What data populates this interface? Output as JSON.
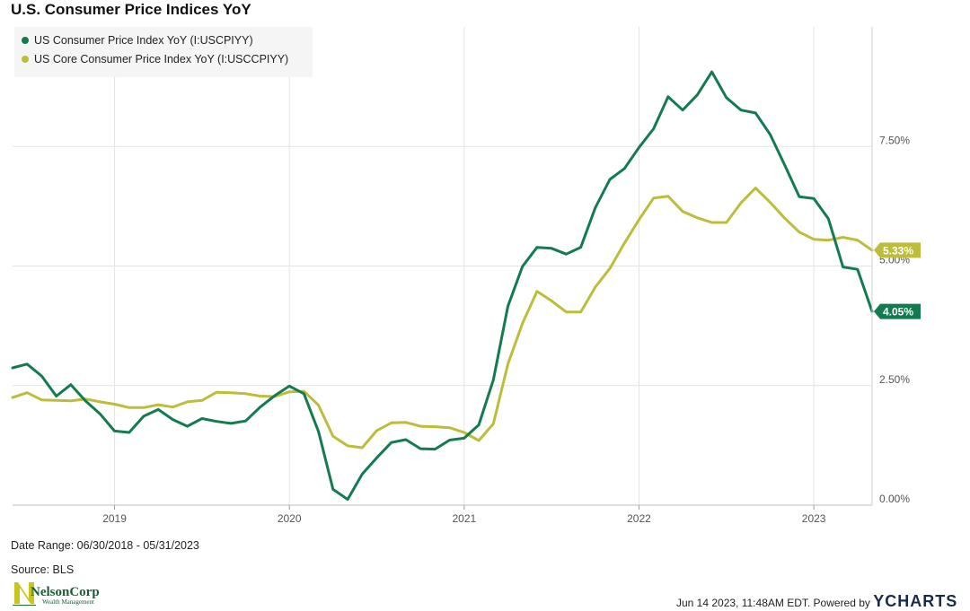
{
  "page": {
    "title": "U.S. Consumer Price Indices YoY",
    "date_range": "Date Range: 06/30/2018 - 05/31/2023",
    "source": "Source: BLS",
    "timestamp": "Jun 14 2023, 11:48AM EDT.",
    "powered_by": "Powered by",
    "brand": "YCHARTS",
    "logo": {
      "name": "NelsonCorp",
      "tagline": "Wealth Management",
      "icon": "nelsoncorp-logo-icon"
    }
  },
  "colors": {
    "cpi": "#147a4f",
    "core": "#bcbd3b",
    "grid": "#e4e4e4",
    "axis_text": "#555555"
  },
  "chart_data": {
    "type": "line",
    "title": "U.S. Consumer Price Indices YoY",
    "xlabel": "",
    "ylabel": "",
    "ylim": [
      0,
      10
    ],
    "y_ticks": [
      0,
      2.5,
      5,
      7.5
    ],
    "y_tick_labels": [
      "0.00%",
      "2.50%",
      "5.00%",
      "7.50%"
    ],
    "x_ticks": [
      "2019-01",
      "2020-01",
      "2021-01",
      "2022-01",
      "2023-01"
    ],
    "x_tick_labels": [
      "2019",
      "2020",
      "2021",
      "2022",
      "2023"
    ],
    "grid": true,
    "legend_position": "top-left",
    "x_start": "2018-06",
    "x_end": "2023-05",
    "series": [
      {
        "name": "US Consumer Price Index YoY (I:USCPIYY)",
        "color": "#147a4f",
        "last_label": "4.05%",
        "values": [
          2.87,
          2.95,
          2.7,
          2.28,
          2.52,
          2.18,
          1.91,
          1.55,
          1.52,
          1.86,
          2.0,
          1.79,
          1.65,
          1.81,
          1.75,
          1.71,
          1.76,
          2.05,
          2.29,
          2.49,
          2.33,
          1.54,
          0.33,
          0.12,
          0.65,
          0.99,
          1.31,
          1.37,
          1.18,
          1.17,
          1.36,
          1.4,
          1.68,
          2.62,
          4.16,
          4.99,
          5.39,
          5.37,
          5.25,
          5.39,
          6.22,
          6.81,
          7.04,
          7.48,
          7.87,
          8.54,
          8.26,
          8.58,
          9.06,
          8.52,
          8.26,
          8.2,
          7.75,
          7.11,
          6.45,
          6.41,
          5.99,
          4.98,
          4.93,
          4.05
        ]
      },
      {
        "name": "US Core Consumer Price Index YoY (I:USCCPIYY)",
        "color": "#bcbd3b",
        "last_label": "5.33%",
        "values": [
          2.25,
          2.35,
          2.2,
          2.19,
          2.18,
          2.22,
          2.16,
          2.11,
          2.04,
          2.04,
          2.1,
          2.05,
          2.16,
          2.19,
          2.36,
          2.35,
          2.33,
          2.28,
          2.27,
          2.37,
          2.38,
          2.09,
          1.44,
          1.24,
          1.2,
          1.56,
          1.72,
          1.73,
          1.65,
          1.64,
          1.62,
          1.52,
          1.35,
          1.7,
          2.95,
          3.8,
          4.47,
          4.27,
          4.04,
          4.04,
          4.56,
          4.95,
          5.48,
          5.97,
          6.42,
          6.46,
          6.14,
          6.01,
          5.91,
          5.91,
          6.32,
          6.63,
          6.33,
          6.0,
          5.71,
          5.56,
          5.54,
          5.6,
          5.54,
          5.33
        ]
      }
    ]
  }
}
